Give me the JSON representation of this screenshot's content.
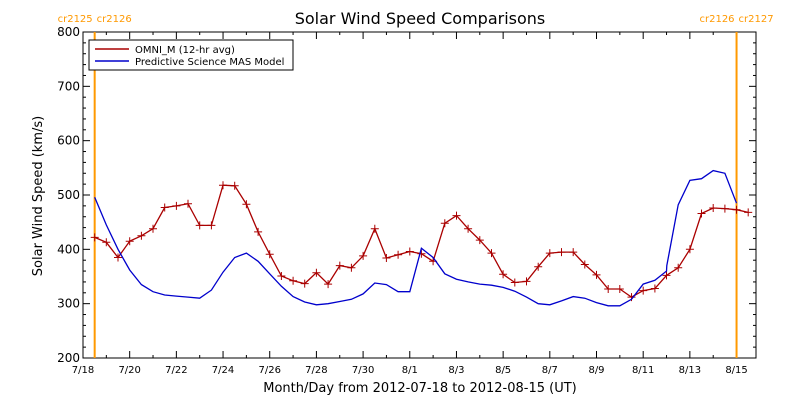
{
  "chart_data": {
    "type": "line",
    "title": "Solar Wind Speed Comparisons",
    "xlabel": "Month/Day from 2012-07-18 to 2012-08-15 (UT)",
    "ylabel": "Solar Wind Speed (km/s)",
    "xlim": [
      "2012-07-18",
      "2012-08-15 20:00"
    ],
    "ylim": [
      200,
      800
    ],
    "yticks": [
      200,
      300,
      400,
      500,
      600,
      700,
      800
    ],
    "xtick_labels": [
      "7/18",
      "7/20",
      "7/22",
      "7/24",
      "7/26",
      "7/28",
      "7/30",
      "8/1",
      "8/3",
      "8/5",
      "8/7",
      "8/9",
      "8/11",
      "8/13",
      "8/15"
    ],
    "grid": false,
    "legend": "top-left",
    "carrington_markers": [
      {
        "date": "2012-07-18 12:00",
        "left_label": "cr2125",
        "right_label": "cr2126"
      },
      {
        "date": "2012-08-15 00:00",
        "left_label": "cr2126",
        "right_label": "cr2127"
      }
    ],
    "colors": {
      "omni": "#aa0000",
      "mas": "#0000cc",
      "marker": "#ff9900"
    },
    "series": [
      {
        "name": "OMNI_M (12-hr avg)",
        "marker": "plus",
        "x": [
          "2012-07-18 12:00",
          "2012-07-19 00:00",
          "2012-07-19 12:00",
          "2012-07-20 00:00",
          "2012-07-20 12:00",
          "2012-07-21 00:00",
          "2012-07-21 12:00",
          "2012-07-22 00:00",
          "2012-07-22 12:00",
          "2012-07-23 00:00",
          "2012-07-23 12:00",
          "2012-07-24 00:00",
          "2012-07-24 12:00",
          "2012-07-25 00:00",
          "2012-07-25 12:00",
          "2012-07-26 00:00",
          "2012-07-26 12:00",
          "2012-07-27 00:00",
          "2012-07-27 12:00",
          "2012-07-28 00:00",
          "2012-07-28 12:00",
          "2012-07-29 00:00",
          "2012-07-29 12:00",
          "2012-07-30 00:00",
          "2012-07-30 12:00",
          "2012-07-31 00:00",
          "2012-07-31 12:00",
          "2012-08-01 00:00",
          "2012-08-01 12:00",
          "2012-08-02 00:00",
          "2012-08-02 12:00",
          "2012-08-03 00:00",
          "2012-08-03 12:00",
          "2012-08-04 00:00",
          "2012-08-04 12:00",
          "2012-08-05 00:00",
          "2012-08-05 12:00",
          "2012-08-06 00:00",
          "2012-08-06 12:00",
          "2012-08-07 00:00",
          "2012-08-07 12:00",
          "2012-08-08 00:00",
          "2012-08-08 12:00",
          "2012-08-09 00:00",
          "2012-08-09 12:00",
          "2012-08-10 00:00",
          "2012-08-10 12:00",
          "2012-08-11 00:00",
          "2012-08-11 12:00",
          "2012-08-12 00:00",
          "2012-08-12 12:00",
          "2012-08-13 00:00",
          "2012-08-13 12:00",
          "2012-08-14 00:00",
          "2012-08-14 12:00",
          "2012-08-15 00:00",
          "2012-08-15 12:00"
        ],
        "y": [
          422,
          413,
          385,
          415,
          425,
          438,
          477,
          480,
          484,
          444,
          444,
          518,
          517,
          483,
          432,
          391,
          351,
          342,
          337,
          357,
          336,
          370,
          366,
          388,
          438,
          384,
          390,
          396,
          392,
          378,
          448,
          462,
          438,
          417,
          393,
          354,
          339,
          341,
          368,
          393,
          395,
          395,
          372,
          353,
          327,
          327,
          312,
          324,
          328,
          352,
          366,
          400,
          466,
          476,
          475,
          473,
          468
        ]
      },
      {
        "name": "Predictive Science MAS Model",
        "marker": "none",
        "x": [
          "2012-07-18 12:00",
          "2012-07-19 00:00",
          "2012-07-19 12:00",
          "2012-07-20 00:00",
          "2012-07-20 12:00",
          "2012-07-21 00:00",
          "2012-07-21 12:00",
          "2012-07-22 00:00",
          "2012-07-22 12:00",
          "2012-07-23 00:00",
          "2012-07-23 12:00",
          "2012-07-24 00:00",
          "2012-07-24 12:00",
          "2012-07-25 00:00",
          "2012-07-25 12:00",
          "2012-07-26 00:00",
          "2012-07-26 12:00",
          "2012-07-27 00:00",
          "2012-07-27 12:00",
          "2012-07-28 00:00",
          "2012-07-28 12:00",
          "2012-07-29 00:00",
          "2012-07-29 12:00",
          "2012-07-30 00:00",
          "2012-07-30 12:00",
          "2012-07-31 00:00",
          "2012-07-31 12:00",
          "2012-08-01 00:00",
          "2012-08-01 12:00",
          "2012-08-02 00:00",
          "2012-08-02 12:00",
          "2012-08-03 00:00",
          "2012-08-03 12:00",
          "2012-08-04 00:00",
          "2012-08-04 12:00",
          "2012-08-05 00:00",
          "2012-08-05 12:00",
          "2012-08-06 00:00",
          "2012-08-06 12:00",
          "2012-08-07 00:00",
          "2012-08-07 12:00",
          "2012-08-08 00:00",
          "2012-08-08 12:00",
          "2012-08-09 00:00",
          "2012-08-09 12:00",
          "2012-08-10 00:00",
          "2012-08-10 12:00",
          "2012-08-11 00:00",
          "2012-08-11 12:00",
          "2012-08-12 00:00",
          "2012-08-12 00:18",
          "2012-08-12 12:00",
          "2012-08-13 00:00",
          "2012-08-13 12:00",
          "2012-08-14 00:00",
          "2012-08-14 12:00",
          "2012-08-15 00:00"
        ],
        "y": [
          496,
          445,
          400,
          362,
          335,
          322,
          316,
          314,
          312,
          310,
          325,
          358,
          385,
          393,
          378,
          355,
          332,
          313,
          303,
          298,
          300,
          304,
          308,
          318,
          338,
          335,
          322,
          322,
          402,
          385,
          355,
          345,
          340,
          336,
          334,
          330,
          323,
          312,
          300,
          298,
          305,
          313,
          310,
          302,
          296,
          296,
          308,
          336,
          343,
          360,
          370,
          482,
          527,
          530,
          545,
          540,
          485
        ]
      }
    ]
  }
}
